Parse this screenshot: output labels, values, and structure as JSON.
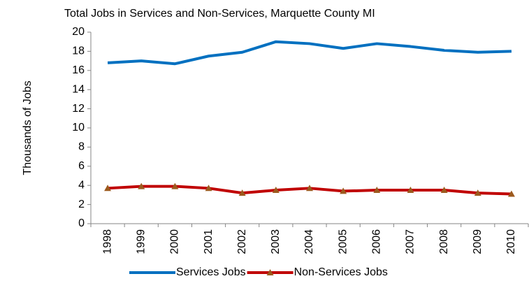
{
  "chart_data": {
    "type": "line",
    "title": "Total Jobs in Services and Non-Services, Marquette County MI",
    "y_label": "Thousands of Jobs",
    "categories": [
      "1998",
      "1999",
      "2000",
      "2001",
      "2002",
      "2003",
      "2004",
      "2005",
      "2006",
      "2007",
      "2008",
      "2009",
      "2010"
    ],
    "series": [
      {
        "name": "Services Jobs",
        "color": "#0070c0",
        "values": [
          16.8,
          17.0,
          16.7,
          17.5,
          17.9,
          19.0,
          18.8,
          18.3,
          18.8,
          18.5,
          18.1,
          17.9,
          18.0
        ]
      },
      {
        "name": "Non-Services Jobs",
        "color": "#c00000",
        "marker": "triangle",
        "marker_color": "#9c5a1e",
        "values": [
          3.7,
          3.9,
          3.9,
          3.7,
          3.2,
          3.5,
          3.7,
          3.4,
          3.5,
          3.5,
          3.5,
          3.2,
          3.1
        ]
      }
    ],
    "ylim": [
      0,
      20
    ],
    "yticks": [
      0,
      2,
      4,
      6,
      8,
      10,
      12,
      14,
      16,
      18,
      20
    ],
    "grid": false,
    "legend": "bottom"
  }
}
